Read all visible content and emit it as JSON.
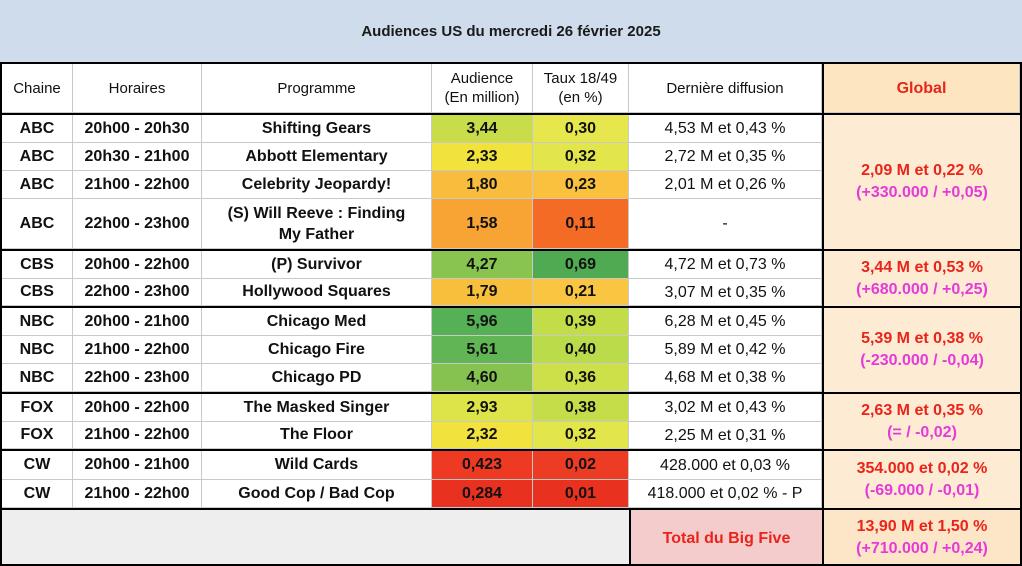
{
  "title": "Audiences US du mercredi 26 février 2025",
  "headers": {
    "chaine": "Chaine",
    "horaires": "Horaires",
    "programme": "Programme",
    "audience_l1": "Audience",
    "audience_l2": "(En million)",
    "taux_l1": "Taux 18/49",
    "taux_l2": "(en %)",
    "derniere": "Dernière diffusion",
    "global": "Global"
  },
  "rows": [
    {
      "chaine": "ABC",
      "horaires": "20h00 - 20h30",
      "programme": "Shifting Gears",
      "audience": "3,44",
      "taux": "0,30",
      "derniere": "4,53 M et 0,43 %"
    },
    {
      "chaine": "ABC",
      "horaires": "20h30 - 21h00",
      "programme": "Abbott Elementary",
      "audience": "2,33",
      "taux": "0,32",
      "derniere": "2,72 M et 0,35 %"
    },
    {
      "chaine": "ABC",
      "horaires": "21h00 - 22h00",
      "programme": "Celebrity Jeopardy!",
      "audience": "1,80",
      "taux": "0,23",
      "derniere": "2,01 M et 0,26 %"
    },
    {
      "chaine": "ABC",
      "horaires": "22h00 - 23h00",
      "programme_l1": "(S) Will Reeve : Finding",
      "programme_l2": "My Father",
      "audience": "1,58",
      "taux": "0,11",
      "derniere": "-"
    },
    {
      "chaine": "CBS",
      "horaires": "20h00 - 22h00",
      "programme": "(P) Survivor",
      "audience": "4,27",
      "taux": "0,69",
      "derniere": "4,72 M et 0,73 %"
    },
    {
      "chaine": "CBS",
      "horaires": "22h00 - 23h00",
      "programme": "Hollywood Squares",
      "audience": "1,79",
      "taux": "0,21",
      "derniere": "3,07 M et 0,35 %"
    },
    {
      "chaine": "NBC",
      "horaires": "20h00 - 21h00",
      "programme": "Chicago Med",
      "audience": "5,96",
      "taux": "0,39",
      "derniere": "6,28 M et 0,45 %"
    },
    {
      "chaine": "NBC",
      "horaires": "21h00 - 22h00",
      "programme": "Chicago Fire",
      "audience": "5,61",
      "taux": "0,40",
      "derniere": "5,89 M et 0,42 %"
    },
    {
      "chaine": "NBC",
      "horaires": "22h00 - 23h00",
      "programme": "Chicago PD",
      "audience": "4,60",
      "taux": "0,36",
      "derniere": "4,68 M et 0,38 %"
    },
    {
      "chaine": "FOX",
      "horaires": "20h00 - 22h00",
      "programme": "The Masked Singer",
      "audience": "2,93",
      "taux": "0,38",
      "derniere": "3,02 M et 0,43 %"
    },
    {
      "chaine": "FOX",
      "horaires": "21h00 - 22h00",
      "programme": "The Floor",
      "audience": "2,32",
      "taux": "0,32",
      "derniere": "2,25 M et 0,31 %"
    },
    {
      "chaine": "CW",
      "horaires": "20h00 - 21h00",
      "programme": "Wild Cards",
      "audience": "0,423",
      "taux": "0,02",
      "derniere": "428.000 et 0,03 %"
    },
    {
      "chaine": "CW",
      "horaires": "21h00 - 22h00",
      "programme": "Good Cop / Bad Cop",
      "audience": "0,284",
      "taux": "0,01",
      "derniere": "418.000 et 0,02 % - P"
    }
  ],
  "global": [
    {
      "network": "ABC",
      "line1": "2,09 M et 0,22 %",
      "line2": "(+330.000 / +0,05)"
    },
    {
      "network": "CBS",
      "line1": "3,44 M et 0,53 %",
      "line2": "(+680.000 / +0,25)"
    },
    {
      "network": "NBC",
      "line1": "5,39 M et 0,38 %",
      "line2": "(-230.000 / -0,04)"
    },
    {
      "network": "FOX",
      "line1": "2,63 M et 0,35 %",
      "line2": "(= / -0,02)"
    },
    {
      "network": "CW",
      "line1": "354.000 et 0,02 %",
      "line2": "(-69.000 / -0,01)"
    }
  ],
  "total": {
    "label": "Total du Big Five",
    "line1": "13,90 M et 1,50 %",
    "line2": "(+710.000 / +0,24)"
  },
  "colors": {
    "title_bg": "#cfdcec",
    "global_header_bg": "#fde6bf",
    "global_bg": "#fdebd3",
    "total_label_bg": "#f5cccc",
    "total_value_bg": "#fde5c8",
    "footer_bg": "#eeeeee",
    "audience_cells": [
      "#c9dc4a",
      "#f1e33c",
      "#f8bd3c",
      "#f7a434",
      "#8ac450",
      "#f8bf3d",
      "#56b055",
      "#62b555",
      "#86c250",
      "#dce448",
      "#f1e23d",
      "#ee3a23",
      "#e8311f"
    ],
    "taux_cells": [
      "#e6e74c",
      "#e3e64b",
      "#f9c13e",
      "#f46b25",
      "#4faa52",
      "#fac641",
      "#c3dd49",
      "#badb4a",
      "#cde04a",
      "#c6dd4a",
      "#e3e64b",
      "#ed3c24",
      "#e8311f"
    ]
  }
}
